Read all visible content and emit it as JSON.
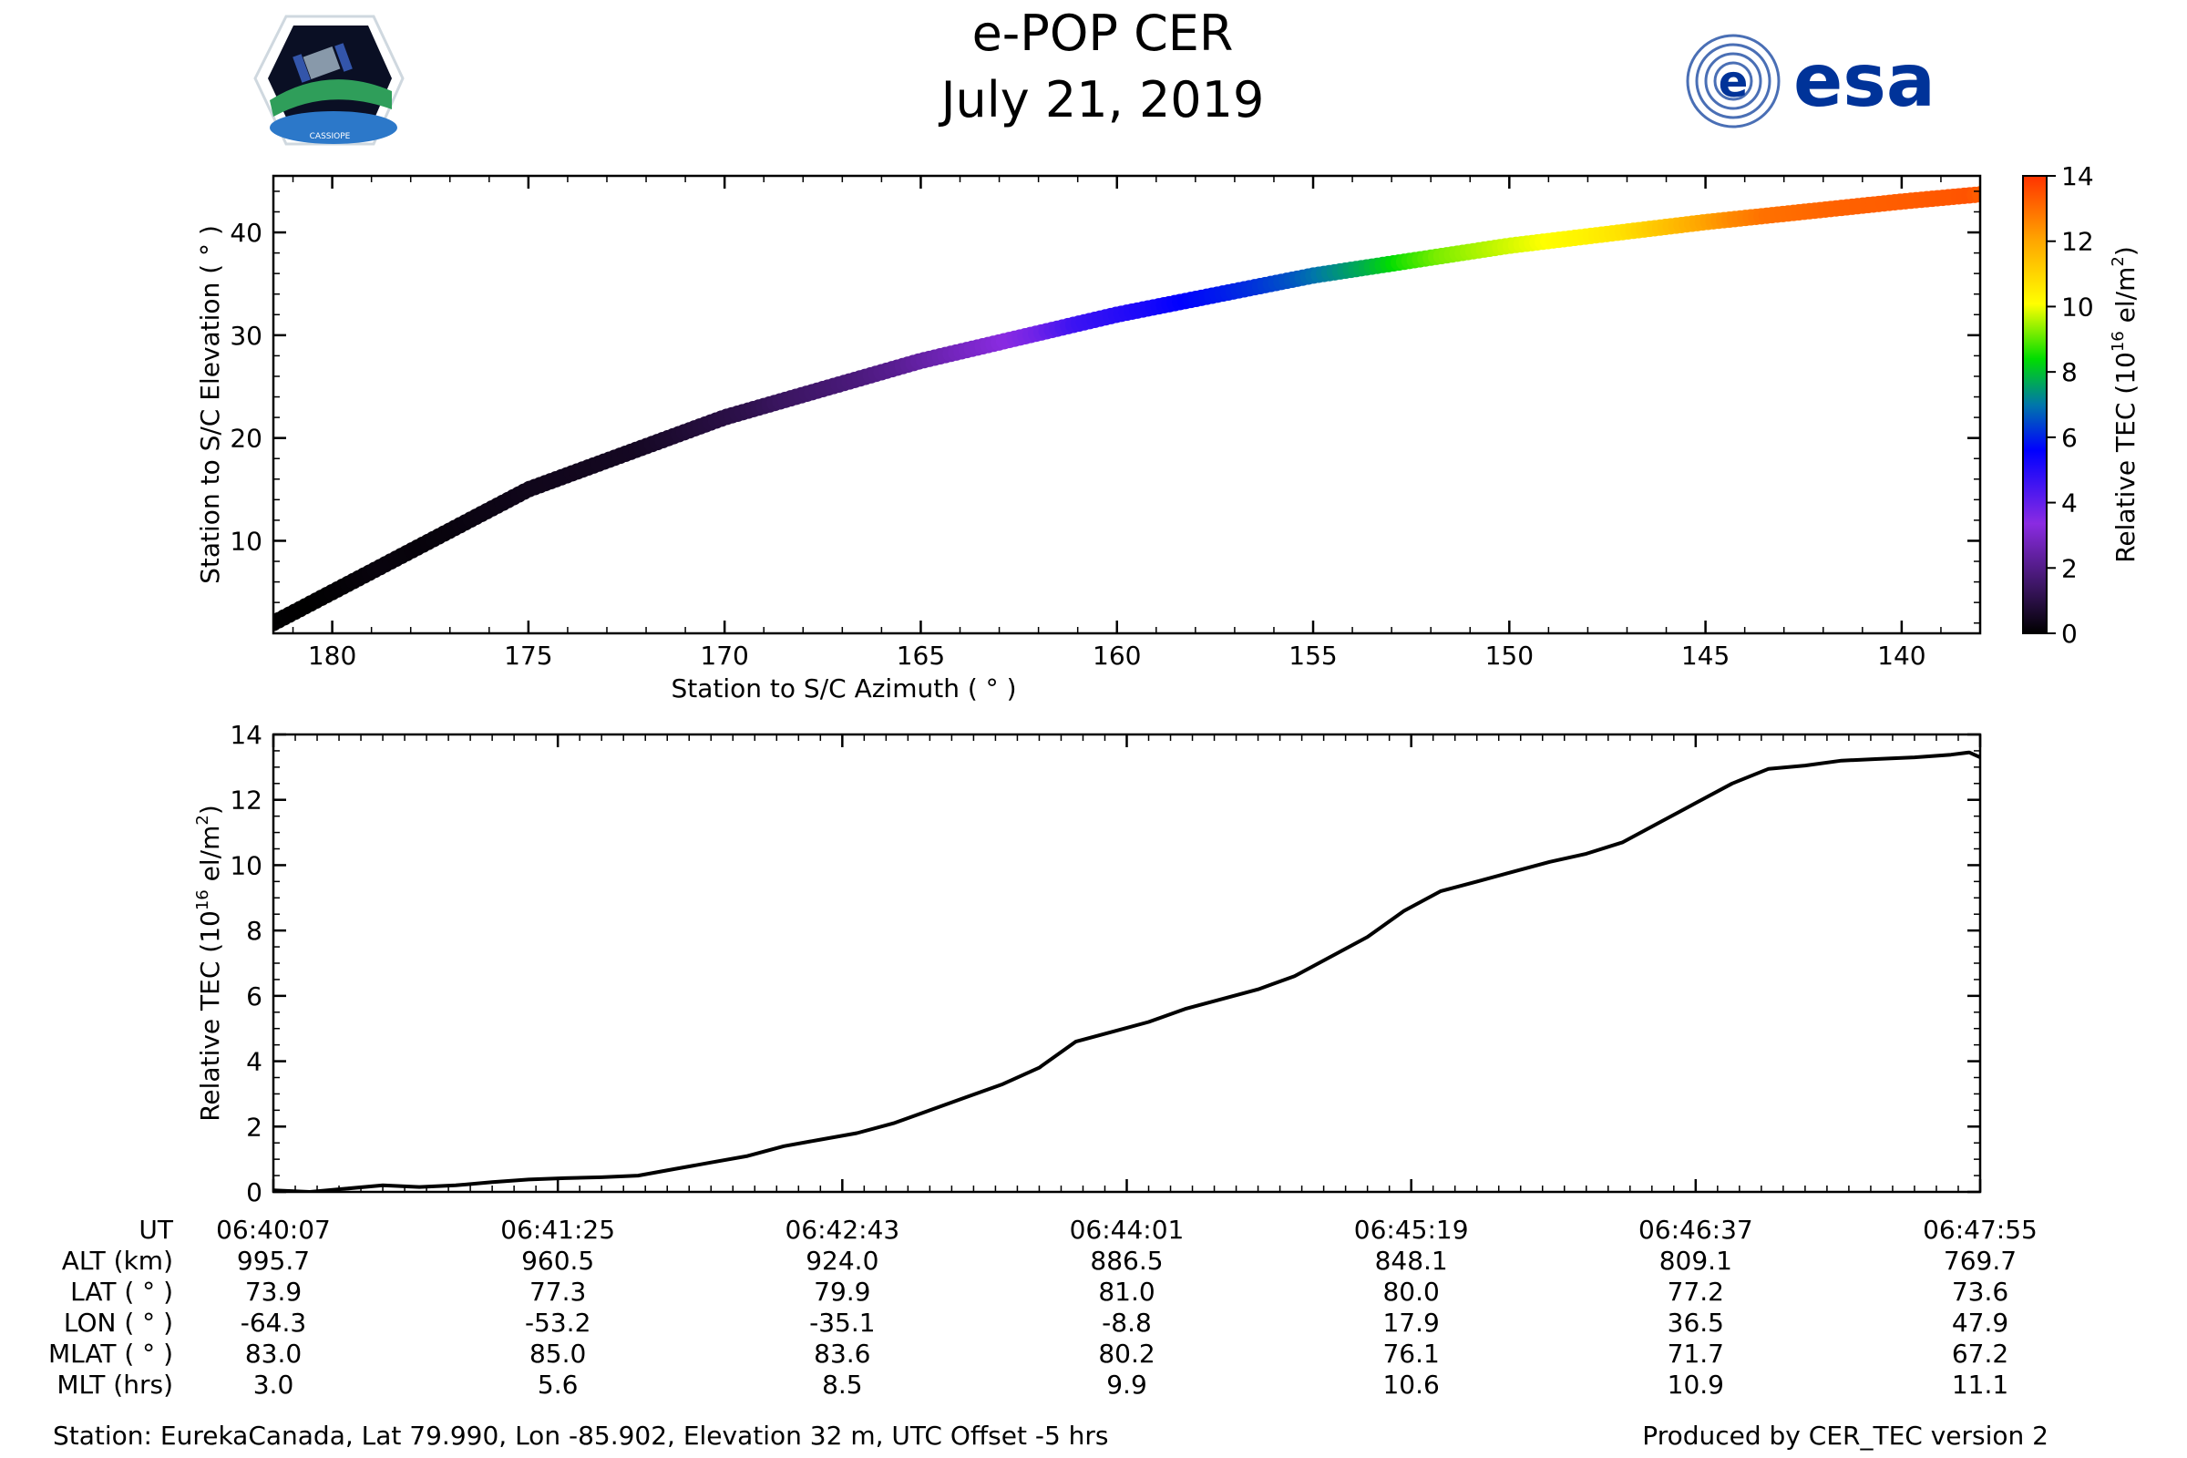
{
  "header": {
    "title_line1": "e-POP CER",
    "title_line2": "July 21, 2019",
    "left_logo_text": "CASSIOPE",
    "right_logo_text": "esa"
  },
  "colors": {
    "line": "#000000",
    "esa_blue": "#003399",
    "colormap": [
      "#000000",
      "#3a1560",
      "#8a2be2",
      "#0000ff",
      "#00dd00",
      "#ffff00",
      "#ffa500",
      "#ff3300"
    ]
  },
  "chart_data": [
    {
      "type": "scatter",
      "title": "",
      "xlabel": "Station to S/C Azimuth ( ° )",
      "ylabel": "Station to S/C Elevation ( ° )",
      "xlim": [
        181.5,
        138.0
      ],
      "ylim": [
        1.0,
        45.5
      ],
      "x_inverted": true,
      "xticks": [
        180,
        175,
        170,
        165,
        160,
        155,
        150,
        145,
        140
      ],
      "yticks": [
        10,
        20,
        30,
        40
      ],
      "color_variable": "Relative TEC",
      "colorbar": {
        "label": "Relative TEC (10^16 el/m^2)",
        "label_main": "Relative TEC (10",
        "label_sup": "16",
        "label_after": " el/m",
        "label_sup2": "2",
        "label_end": ")",
        "range": [
          0,
          14
        ],
        "ticks": [
          0,
          2,
          4,
          6,
          8,
          10,
          12,
          14
        ],
        "colormap": "nipy_spectral-like"
      },
      "trajectory_keypoints": [
        {
          "az": 181.5,
          "el": 2.0
        },
        {
          "az": 178.0,
          "el": 9.0
        },
        {
          "az": 175.0,
          "el": 15.0
        },
        {
          "az": 170.0,
          "el": 22.0
        },
        {
          "az": 165.0,
          "el": 27.5
        },
        {
          "az": 160.0,
          "el": 32.0
        },
        {
          "az": 155.0,
          "el": 35.8
        },
        {
          "az": 150.0,
          "el": 38.7
        },
        {
          "az": 145.0,
          "el": 41.0
        },
        {
          "az": 140.0,
          "el": 43.0
        },
        {
          "az": 138.0,
          "el": 43.7
        }
      ]
    },
    {
      "type": "line",
      "title": "",
      "xlabel": "",
      "ylabel": "Relative TEC (10^16 el/m^2)",
      "ylabel_main": "Relative TEC (10",
      "ylabel_sup": "16",
      "ylabel_after": " el/m",
      "ylabel_sup2": "2",
      "ylabel_end": ")",
      "xlim": [
        0,
        468
      ],
      "ylim": [
        0,
        14
      ],
      "yticks": [
        0,
        2,
        4,
        6,
        8,
        10,
        12,
        14
      ],
      "x_tick_seconds": [
        0,
        78,
        156,
        234,
        312,
        390,
        468
      ],
      "series": [
        {
          "name": "Relative TEC",
          "x": [
            0,
            10,
            20,
            30,
            40,
            50,
            60,
            70,
            80,
            90,
            100,
            110,
            120,
            130,
            140,
            150,
            160,
            170,
            180,
            190,
            200,
            210,
            220,
            230,
            240,
            250,
            260,
            270,
            280,
            290,
            300,
            310,
            320,
            330,
            340,
            350,
            360,
            370,
            380,
            390,
            400,
            410,
            420,
            430,
            440,
            450,
            460,
            465,
            468
          ],
          "values": [
            0.05,
            0.0,
            0.1,
            0.2,
            0.15,
            0.2,
            0.3,
            0.38,
            0.42,
            0.45,
            0.5,
            0.7,
            0.9,
            1.1,
            1.4,
            1.6,
            1.8,
            2.1,
            2.5,
            2.9,
            3.3,
            3.8,
            4.6,
            4.9,
            5.2,
            5.6,
            5.9,
            6.2,
            6.6,
            7.2,
            7.8,
            8.6,
            9.2,
            9.5,
            9.8,
            10.1,
            10.35,
            10.7,
            11.3,
            11.9,
            12.5,
            12.95,
            13.05,
            13.2,
            13.25,
            13.3,
            13.38,
            13.45,
            13.3
          ]
        }
      ]
    }
  ],
  "info_table": {
    "row_labels": [
      "UT",
      "ALT (km)",
      "LAT ( ° )",
      "LON ( ° )",
      "MLAT ( ° )",
      "MLT (hrs)"
    ],
    "columns": [
      {
        "ut": "06:40:07",
        "alt": "995.7",
        "lat": "73.9",
        "lon": "-64.3",
        "mlat": "83.0",
        "mlt": "3.0"
      },
      {
        "ut": "06:41:25",
        "alt": "960.5",
        "lat": "77.3",
        "lon": "-53.2",
        "mlat": "85.0",
        "mlt": "5.6"
      },
      {
        "ut": "06:42:43",
        "alt": "924.0",
        "lat": "79.9",
        "lon": "-35.1",
        "mlat": "83.6",
        "mlt": "8.5"
      },
      {
        "ut": "06:44:01",
        "alt": "886.5",
        "lat": "81.0",
        "lon": "-8.8",
        "mlat": "80.2",
        "mlt": "9.9"
      },
      {
        "ut": "06:45:19",
        "alt": "848.1",
        "lat": "80.0",
        "lon": "17.9",
        "mlat": "76.1",
        "mlt": "10.6"
      },
      {
        "ut": "06:46:37",
        "alt": "809.1",
        "lat": "77.2",
        "lon": "36.5",
        "mlat": "71.7",
        "mlt": "10.9"
      },
      {
        "ut": "06:47:55",
        "alt": "769.7",
        "lat": "73.6",
        "lon": "47.9",
        "mlat": "67.2",
        "mlt": "11.1"
      }
    ]
  },
  "footer": {
    "station": "Station: EurekaCanada, Lat 79.990, Lon -85.902, Elevation 32 m, UTC Offset -5 hrs",
    "produced_by": "Produced by CER_TEC version 2"
  }
}
